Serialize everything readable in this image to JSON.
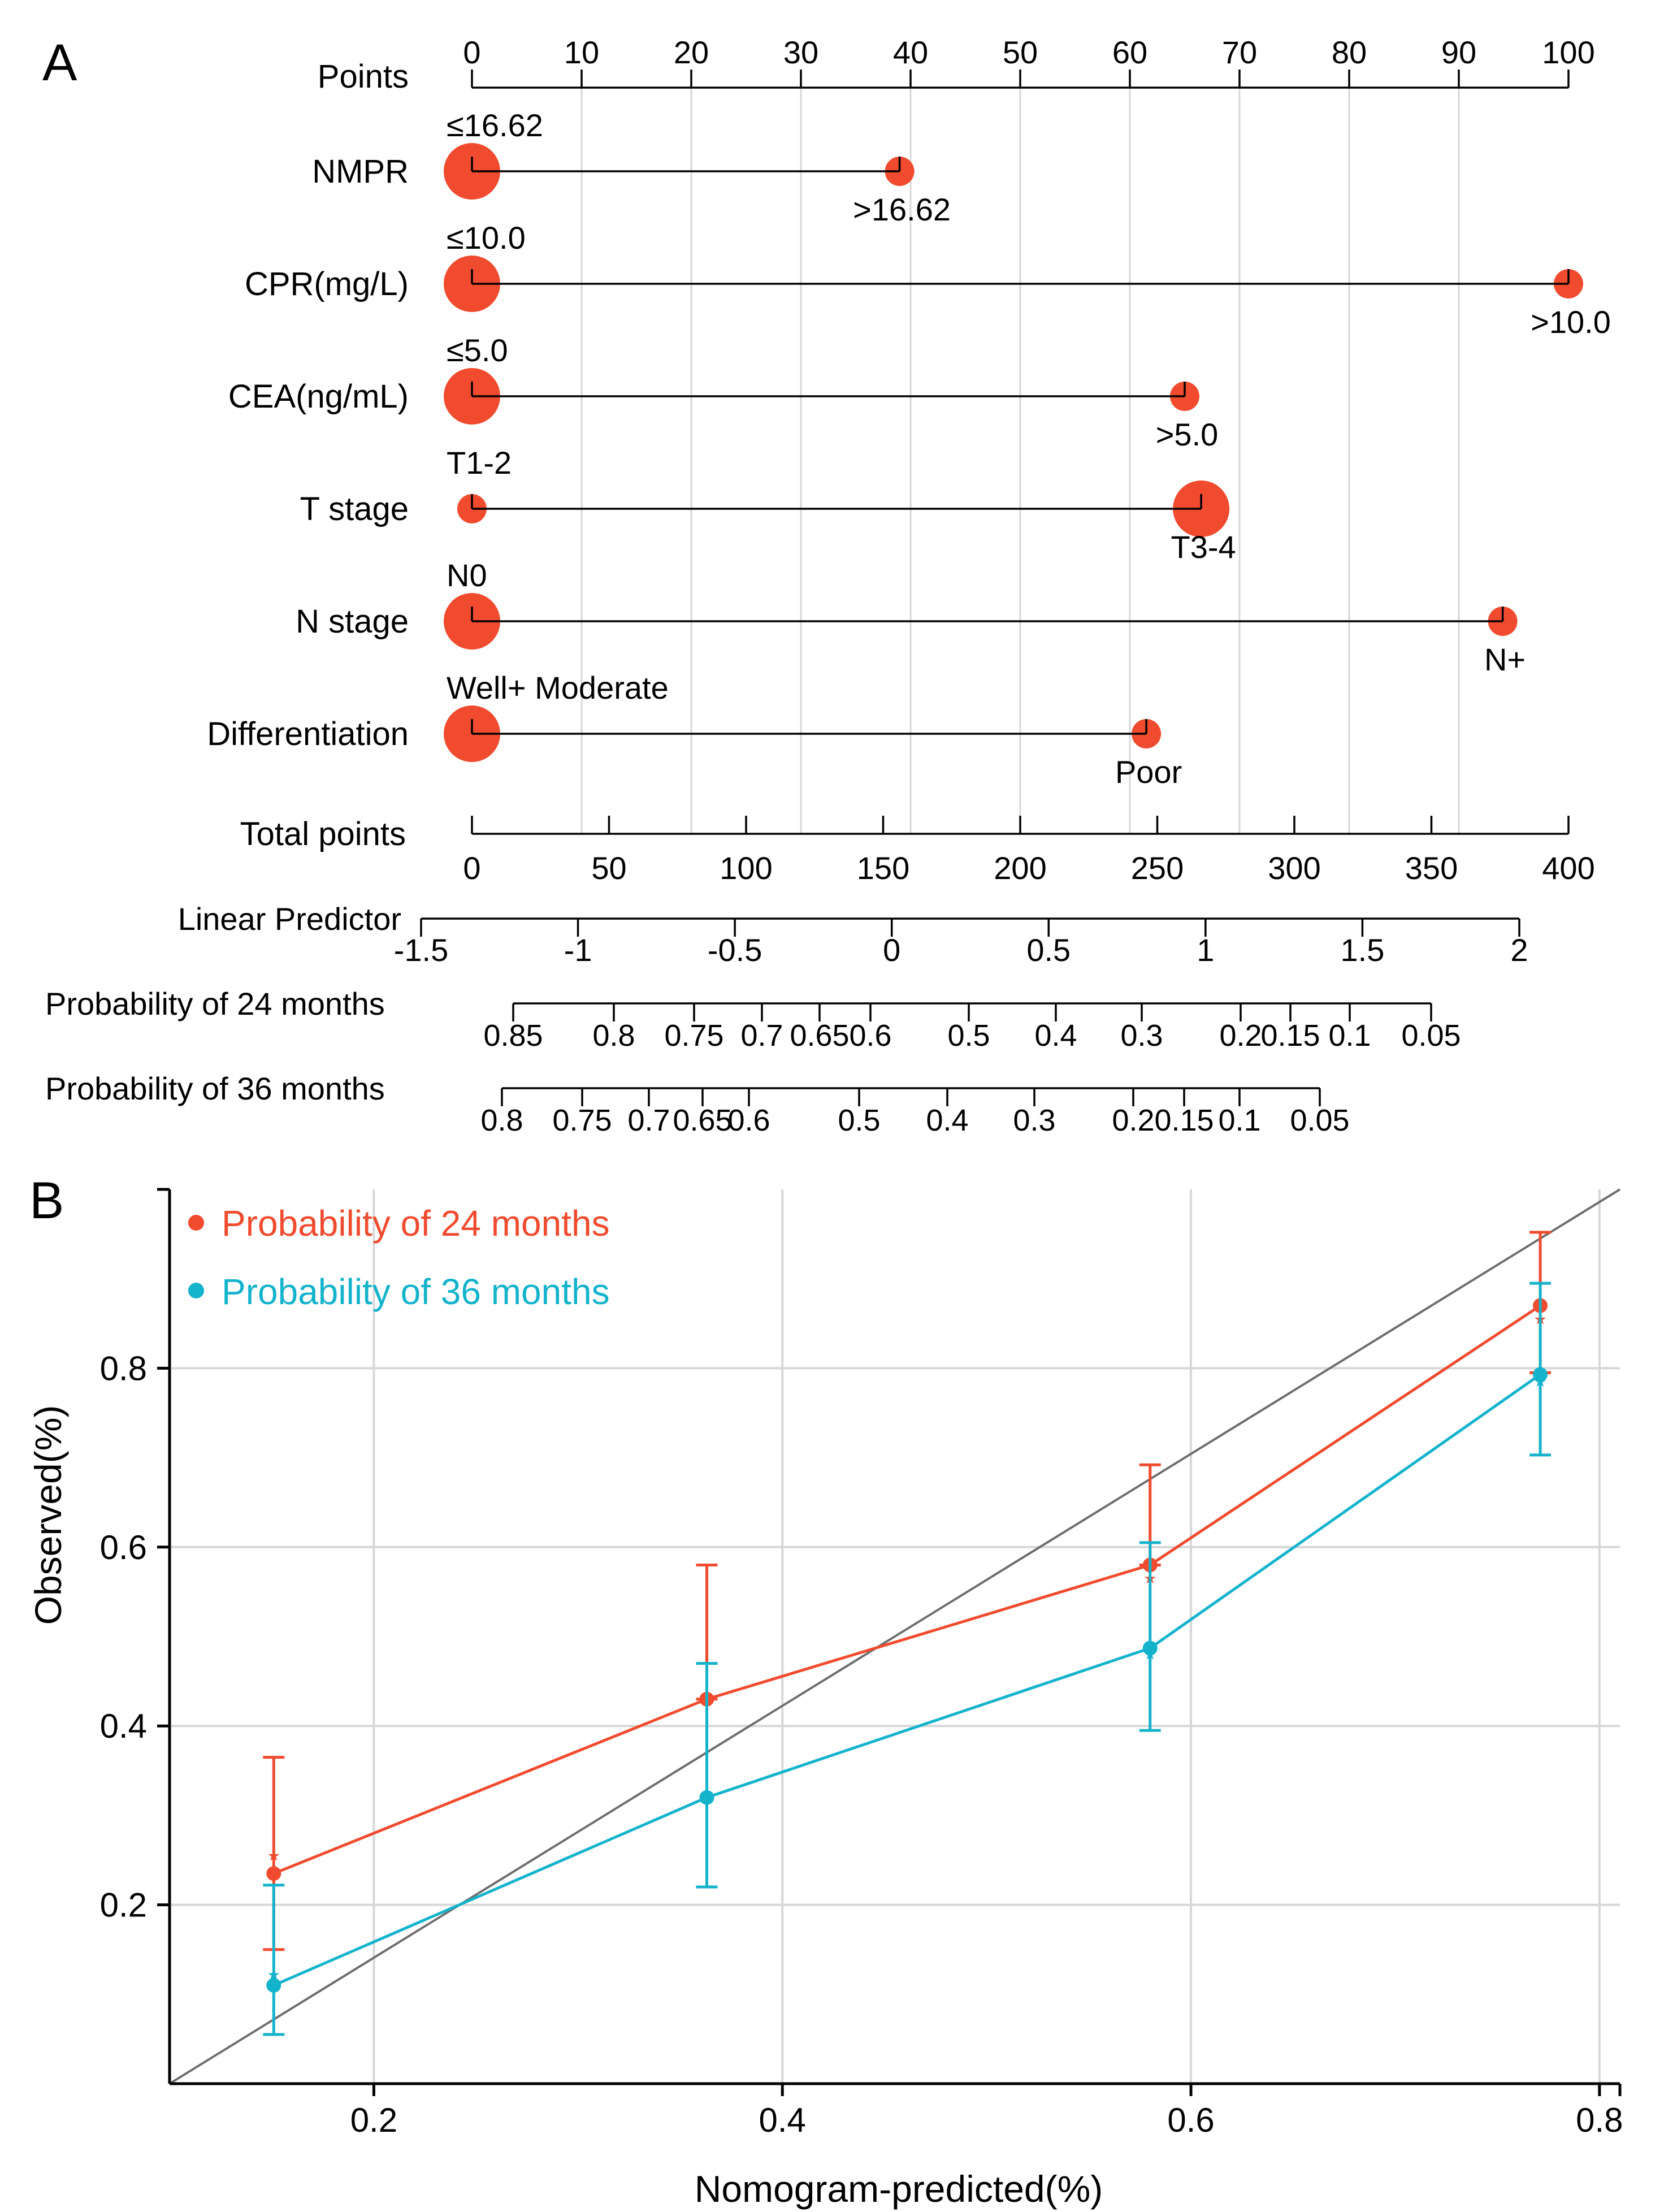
{
  "panels": {
    "a": {
      "letter": "A"
    },
    "b": {
      "letter": "B"
    }
  },
  "colors": {
    "red": "#F04B2E",
    "cyan": "#14B3CC",
    "diag": "#6E6E6E",
    "grid": "#D7D7D7",
    "axis": "#000000"
  },
  "nomogram": {
    "points_axis": {
      "label": "Points",
      "ticks": [
        "0",
        "10",
        "20",
        "30",
        "40",
        "50",
        "60",
        "70",
        "80",
        "90",
        "100"
      ]
    },
    "variables": [
      {
        "name": "NMPR",
        "low_label": "≤16.62",
        "high_label": ">16.62",
        "low_points": 0,
        "high_points": 39,
        "low_size": "large",
        "high_size": "small"
      },
      {
        "name": "CPR(mg/L)",
        "low_label": "≤10.0",
        "high_label": ">10.0",
        "low_points": 0,
        "high_points": 100,
        "low_size": "large",
        "high_size": "small"
      },
      {
        "name": "CEA(ng/mL)",
        "low_label": "≤5.0",
        "high_label": ">5.0",
        "low_points": 0,
        "high_points": 65,
        "low_size": "large",
        "high_size": "small"
      },
      {
        "name": "T stage",
        "low_label": "T1-2",
        "high_label": "T3-4",
        "low_points": 0,
        "high_points": 66.5,
        "low_size": "small",
        "high_size": "large"
      },
      {
        "name": "N stage",
        "low_label": "N0",
        "high_label": "N+",
        "low_points": 0,
        "high_points": 94,
        "low_size": "large",
        "high_size": "small"
      },
      {
        "name": "Differentiation",
        "low_label": "Well+ Moderate",
        "high_label": "Poor",
        "low_points": 0,
        "high_points": 61.5,
        "low_size": "large",
        "high_size": "small"
      }
    ],
    "total_points": {
      "label": "Total points",
      "ticks": [
        "0",
        "50",
        "100",
        "150",
        "200",
        "250",
        "300",
        "350",
        "400"
      ]
    },
    "linear_predictor": {
      "label": "Linear Predictor",
      "ticks": [
        "-1.5",
        "-1",
        "-0.5",
        "0",
        "0.5",
        "1",
        "1.5",
        "2"
      ]
    },
    "prob24": {
      "label": "Probability of 24 months",
      "ticks": [
        "0.85",
        "0.8",
        "0.75",
        "0.7",
        "0.65",
        "0.6",
        "0.5",
        "0.4",
        "0.3",
        "0.2",
        "0.15",
        "0.1",
        "0.05"
      ]
    },
    "prob36": {
      "label": "Probability of 36 months",
      "ticks": [
        "0.8",
        "0.75",
        "0.7",
        "0.65",
        "0.6",
        "0.5",
        "0.4",
        "0.3",
        "0.2",
        "0.15",
        "0.1",
        "0.05"
      ]
    }
  },
  "chart_data": [
    {
      "type": "nomogram",
      "title": "A",
      "points_range": [
        0,
        100
      ],
      "total_points_range": [
        0,
        400
      ],
      "linear_predictor_range": [
        -1.5,
        2
      ],
      "variables": [
        {
          "name": "NMPR",
          "levels": [
            "≤16.62",
            ">16.62"
          ],
          "points": [
            0,
            39
          ]
        },
        {
          "name": "CPR(mg/L)",
          "levels": [
            "≤10.0",
            ">10.0"
          ],
          "points": [
            0,
            100
          ]
        },
        {
          "name": "CEA(ng/mL)",
          "levels": [
            "≤5.0",
            ">5.0"
          ],
          "points": [
            0,
            65
          ]
        },
        {
          "name": "T stage",
          "levels": [
            "T1-2",
            "T3-4"
          ],
          "points": [
            0,
            66.5
          ]
        },
        {
          "name": "N stage",
          "levels": [
            "N0",
            "N+"
          ],
          "points": [
            0,
            94
          ]
        },
        {
          "name": "Differentiation",
          "levels": [
            "Well+ Moderate",
            "Poor"
          ],
          "points": [
            0,
            61.5
          ]
        }
      ]
    },
    {
      "type": "line",
      "title": "B",
      "xlabel": "Nomogram-predicted(%)",
      "ylabel": "Observed(%)",
      "xlim": [
        0.1,
        0.81
      ],
      "ylim": [
        0.0,
        1.0
      ],
      "xticks": [
        "0.2",
        "0.4",
        "0.6",
        "0.8"
      ],
      "yticks": [
        "0.2",
        "0.4",
        "0.6",
        "0.8"
      ],
      "grid": true,
      "legend": "top-left",
      "reference_line": {
        "from": [
          0.1,
          0.0
        ],
        "to": [
          0.81,
          1.0
        ]
      },
      "series": [
        {
          "name": "Probability of 24 months",
          "color": "#F04B2E",
          "x": [
            0.151,
            0.363,
            0.58,
            0.771
          ],
          "y": [
            0.235,
            0.43,
            0.58,
            0.87
          ],
          "err_low": [
            0.15,
            0.43,
            0.58,
            0.795
          ],
          "err_high": [
            0.365,
            0.58,
            0.692,
            0.952
          ],
          "star_y": [
            0.255,
            0.43,
            0.565,
            0.855
          ]
        },
        {
          "name": "Probability of 36 months",
          "color": "#14B3CC",
          "x": [
            0.151,
            0.363,
            0.58,
            0.771
          ],
          "y": [
            0.11,
            0.32,
            0.487,
            0.793
          ],
          "err_low": [
            0.055,
            0.22,
            0.395,
            0.703
          ],
          "err_high": [
            0.222,
            0.47,
            0.605,
            0.895
          ],
          "star_y": [
            0.122,
            0.32,
            0.48,
            0.785
          ]
        }
      ]
    }
  ]
}
